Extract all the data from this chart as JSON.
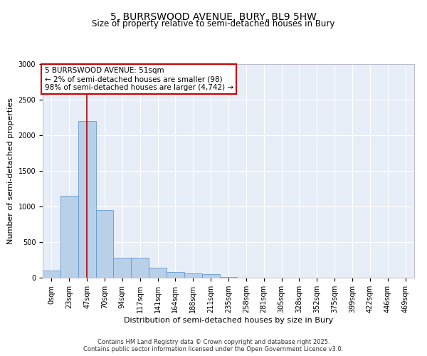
{
  "title_line1": "5, BURRSWOOD AVENUE, BURY, BL9 5HW",
  "title_line2": "Size of property relative to semi-detached houses in Bury",
  "xlabel": "Distribution of semi-detached houses by size in Bury",
  "ylabel": "Number of semi-detached properties",
  "footnote_line1": "Contains HM Land Registry data © Crown copyright and database right 2025.",
  "footnote_line2": "Contains public sector information licensed under the Open Government Licence v3.0.",
  "annotation_line1": "5 BURRSWOOD AVENUE: 51sqm",
  "annotation_line2": "← 2% of semi-detached houses are smaller (98)",
  "annotation_line3": "98% of semi-detached houses are larger (4,742) →",
  "bin_labels": [
    "0sqm",
    "23sqm",
    "47sqm",
    "70sqm",
    "94sqm",
    "117sqm",
    "141sqm",
    "164sqm",
    "188sqm",
    "211sqm",
    "235sqm",
    "258sqm",
    "281sqm",
    "305sqm",
    "328sqm",
    "352sqm",
    "375sqm",
    "399sqm",
    "422sqm",
    "446sqm",
    "469sqm"
  ],
  "bar_values": [
    100,
    1150,
    2200,
    950,
    280,
    280,
    140,
    80,
    60,
    50,
    10,
    5,
    3,
    2,
    1,
    0,
    0,
    0,
    0,
    0,
    0
  ],
  "bar_color": "#b8d0e8",
  "bar_edge_color": "#6699cc",
  "vline_x": 2.0,
  "vline_color": "#aa0000",
  "annotation_box_edge_color": "#cc0000",
  "background_color": "#e8eef8",
  "ylim": [
    0,
    3000
  ],
  "yticks": [
    0,
    500,
    1000,
    1500,
    2000,
    2500,
    3000
  ],
  "title_fontsize": 10,
  "subtitle_fontsize": 8.5,
  "tick_fontsize": 7,
  "ylabel_fontsize": 8,
  "xlabel_fontsize": 8,
  "annotation_fontsize": 7.5,
  "footnote_fontsize": 6
}
